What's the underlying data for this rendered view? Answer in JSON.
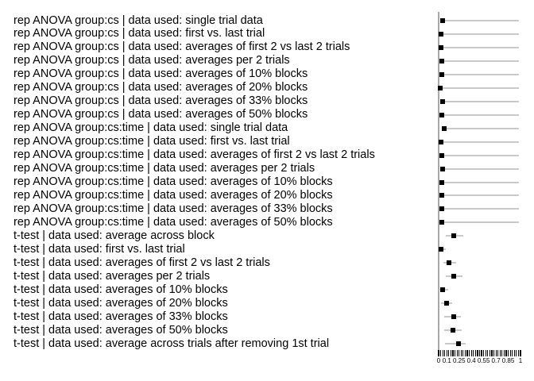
{
  "colors": {
    "background": "#ffffff",
    "marker": "#000000",
    "ci_line": "#c9c9c9",
    "axis_line": "#a8a8a8",
    "tick": "#000000",
    "text": "#000000"
  },
  "chart_data": {
    "type": "scatter",
    "subtype": "forest-dot-plot",
    "title": "",
    "xlabel": "",
    "ylabel": "",
    "xlim": [
      0,
      1
    ],
    "grid": false,
    "legend": false,
    "x_minor_tick_step": 0.025,
    "x_tick_labels": [
      {
        "value": 0,
        "label": "0"
      },
      {
        "value": 0.1,
        "label": "0.1"
      },
      {
        "value": 0.25,
        "label": "0.25"
      },
      {
        "value": 0.4,
        "label": "0.4"
      },
      {
        "value": 0.55,
        "label": "0.55"
      },
      {
        "value": 0.7,
        "label": "0.7"
      },
      {
        "value": 0.85,
        "label": "0.85"
      },
      {
        "value": 1,
        "label": "1"
      }
    ],
    "rows": [
      {
        "label": "rep ANOVA group:cs | data used: single trial data",
        "value": 0.05,
        "ci_low": 0.05,
        "ci_high": 0.98
      },
      {
        "label": "rep ANOVA group:cs | data used: first vs. last trial",
        "value": 0.03,
        "ci_low": 0.03,
        "ci_high": 0.98
      },
      {
        "label": "rep ANOVA group:cs | data used: averages of first 2 vs last 2 trials",
        "value": 0.03,
        "ci_low": 0.03,
        "ci_high": 0.98
      },
      {
        "label": "rep ANOVA group:cs | data used: averages per 2 trials",
        "value": 0.04,
        "ci_low": 0.04,
        "ci_high": 0.98
      },
      {
        "label": "rep ANOVA group:cs | data used: averages of 10% blocks",
        "value": 0.04,
        "ci_low": 0.04,
        "ci_high": 0.98
      },
      {
        "label": "rep ANOVA group:cs | data used: averages of 20% blocks",
        "value": 0.02,
        "ci_low": 0.02,
        "ci_high": 0.98
      },
      {
        "label": "rep ANOVA group:cs | data used: averages of 33% blocks",
        "value": 0.05,
        "ci_low": 0.05,
        "ci_high": 0.98
      },
      {
        "label": "rep ANOVA group:cs | data used: averages of 50% blocks",
        "value": 0.04,
        "ci_low": 0.04,
        "ci_high": 0.98
      },
      {
        "label": "rep ANOVA group:cs:time | data used: single trial data",
        "value": 0.07,
        "ci_low": 0.07,
        "ci_high": 0.98
      },
      {
        "label": "rep ANOVA group:cs:time | data used: first vs. last trial",
        "value": 0.03,
        "ci_low": 0.03,
        "ci_high": 0.98
      },
      {
        "label": "rep ANOVA group:cs:time | data used: averages of first 2 vs last 2 trials",
        "value": 0.04,
        "ci_low": 0.04,
        "ci_high": 0.98
      },
      {
        "label": "rep ANOVA group:cs:time | data used: averages per 2 trials",
        "value": 0.05,
        "ci_low": 0.05,
        "ci_high": 0.98
      },
      {
        "label": "rep ANOVA group:cs:time | data used: averages of 10% blocks",
        "value": 0.04,
        "ci_low": 0.04,
        "ci_high": 0.98
      },
      {
        "label": "rep ANOVA group:cs:time | data used: averages of 20% blocks",
        "value": 0.04,
        "ci_low": 0.04,
        "ci_high": 0.98
      },
      {
        "label": "rep ANOVA group:cs:time | data used: averages of 33% blocks",
        "value": 0.04,
        "ci_low": 0.04,
        "ci_high": 0.98
      },
      {
        "label": "rep ANOVA group:cs:time | data used: averages of 50% blocks",
        "value": 0.04,
        "ci_low": 0.04,
        "ci_high": 0.98
      },
      {
        "label": "t-test | data used: average across block",
        "value": 0.18,
        "ci_low": 0.09,
        "ci_high": 0.3
      },
      {
        "label": "t-test | data used: first vs. last trial",
        "value": 0.03,
        "ci_low": 0.0,
        "ci_high": 0.09
      },
      {
        "label": "t-test | data used: averages of first 2 vs last 2 trials",
        "value": 0.13,
        "ci_low": 0.06,
        "ci_high": 0.21
      },
      {
        "label": "t-test | data used: averages per 2 trials",
        "value": 0.18,
        "ci_low": 0.09,
        "ci_high": 0.29
      },
      {
        "label": "t-test | data used: averages of 10% blocks",
        "value": 0.05,
        "ci_low": 0.0,
        "ci_high": 0.12
      },
      {
        "label": "t-test | data used: averages of 20% blocks",
        "value": 0.1,
        "ci_low": 0.03,
        "ci_high": 0.17
      },
      {
        "label": "t-test | data used: averages of 33% blocks",
        "value": 0.18,
        "ci_low": 0.07,
        "ci_high": 0.27
      },
      {
        "label": "t-test | data used: averages of 50% blocks",
        "value": 0.17,
        "ci_low": 0.07,
        "ci_high": 0.28
      },
      {
        "label": "t-test | data used: average across trials after removing 1st trial",
        "value": 0.24,
        "ci_low": 0.08,
        "ci_high": 0.33
      }
    ]
  }
}
